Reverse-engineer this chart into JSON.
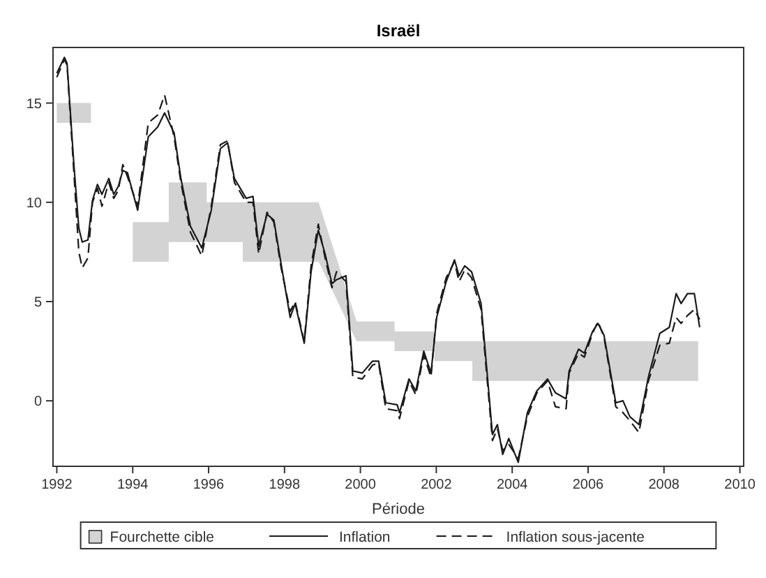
{
  "chart_data": {
    "type": "line",
    "title": "Israël",
    "xlabel": "Période",
    "xlim": [
      1991.9,
      2010.1
    ],
    "ylim": [
      -3.3,
      17.8
    ],
    "xticks": [
      1992,
      1994,
      1996,
      1998,
      2000,
      2002,
      2004,
      2006,
      2008,
      2010
    ],
    "yticks": [
      0,
      5,
      10,
      15
    ],
    "grid": false,
    "legend": "bottom",
    "series": [
      {
        "name": "Fourchette cible",
        "color": "#d3d3d3",
        "x": [
          1992,
          1992.9,
          1993.5,
          1994,
          1994.95,
          1994.95,
          1995.95,
          1995.95,
          1996.9,
          1996.9,
          1998.9,
          1999.9,
          2000.9,
          2000.9,
          2001.95,
          2001.95,
          2002.95,
          2002.95,
          2008.9
        ],
        "values": [
          null,
          null,
          null,
          null,
          null,
          null,
          null,
          null,
          null,
          null,
          null,
          null,
          null,
          null,
          null,
          null,
          null,
          null,
          null
        ],
        "upper": [
          15,
          15,
          null,
          9,
          9,
          11,
          11,
          10,
          10,
          10,
          10,
          4,
          4,
          3.5,
          3.5,
          3,
          3,
          3,
          3
        ],
        "lower": [
          14,
          14,
          null,
          7,
          7,
          8,
          8,
          8,
          8,
          7,
          7,
          3,
          3,
          2.5,
          2.5,
          2,
          2,
          1,
          1
        ]
      },
      {
        "name": "Inflation",
        "color": "#1a1a1a",
        "line_style": "solid",
        "x": [
          1992,
          1992.2,
          1992.27,
          1992.45,
          1992.58,
          1992.67,
          1992.82,
          1992.94,
          1993.07,
          1993.19,
          1993.37,
          1993.5,
          1993.62,
          1993.74,
          1993.86,
          1994.13,
          1994.41,
          1994.66,
          1994.84,
          1995.09,
          1995.27,
          1995.52,
          1995.82,
          1996.07,
          1996.31,
          1996.5,
          1996.68,
          1996.99,
          1997.17,
          1997.32,
          1997.54,
          1997.72,
          1997.91,
          1998.15,
          1998.28,
          1998.52,
          1998.7,
          1998.89,
          1999.07,
          1999.25,
          1999.37,
          1999.62,
          1999.8,
          2000.05,
          2000.32,
          2000.48,
          2000.67,
          2000.97,
          2001.03,
          2001.28,
          2001.46,
          2001.67,
          2001.86,
          2002.01,
          2002.26,
          2002.48,
          2002.6,
          2002.75,
          2002.93,
          2003.18,
          2003.48,
          2003.61,
          2003.75,
          2003.91,
          2004.16,
          2004.4,
          2004.65,
          2004.93,
          2005.14,
          2005.42,
          2005.5,
          2005.75,
          2005.9,
          2006.12,
          2006.26,
          2006.42,
          2006.73,
          2006.92,
          2007.1,
          2007.34,
          2007.59,
          2007.89,
          2008.14,
          2008.32,
          2008.45,
          2008.62,
          2008.8,
          2008.94
        ],
        "values": [
          16.5,
          17.3,
          17,
          11.9,
          8.7,
          8,
          8.1,
          10.1,
          10.9,
          10.4,
          11.2,
          10.4,
          10.8,
          11.6,
          11.5,
          9.6,
          13.3,
          13.8,
          14.5,
          13.5,
          11.2,
          8.8,
          7.7,
          9.6,
          12.7,
          13,
          11.2,
          10.2,
          10.3,
          7.8,
          9.4,
          9.1,
          6.9,
          4.2,
          4.9,
          2.9,
          6.5,
          8.6,
          7.4,
          5.9,
          6.1,
          6.3,
          1.5,
          1.4,
          2,
          2,
          -0.1,
          -0.2,
          -0.6,
          1.1,
          0.5,
          2.5,
          1.4,
          4.2,
          6,
          7.1,
          6.3,
          6.8,
          6.5,
          4.9,
          -1.7,
          -1.2,
          -2.7,
          -1.9,
          -3.1,
          -0.6,
          0.5,
          1.1,
          0.4,
          0.1,
          1.5,
          2.6,
          2.4,
          3.5,
          3.9,
          3.3,
          -0.1,
          0,
          -0.8,
          -1.2,
          1.2,
          3.4,
          3.7,
          5.4,
          4.9,
          5.4,
          5.4,
          3.7
        ]
      },
      {
        "name": "Inflation sous-jacente",
        "color": "#1a1a1a",
        "line_style": "dashed",
        "x": [
          1992,
          1992.2,
          1992.27,
          1992.45,
          1992.58,
          1992.67,
          1992.82,
          1992.94,
          1993.07,
          1993.19,
          1993.37,
          1993.5,
          1993.62,
          1993.74,
          1993.86,
          1994.13,
          1994.41,
          1994.66,
          1994.84,
          1995.09,
          1995.27,
          1995.52,
          1995.82,
          1996.07,
          1996.31,
          1996.5,
          1996.68,
          1996.99,
          1997.17,
          1997.32,
          1997.54,
          1997.72,
          1997.91,
          1998.15,
          1998.28,
          1998.52,
          1998.7,
          1998.89,
          1999.07,
          1999.25,
          1999.37,
          1999.62,
          1999.8,
          2000.05,
          2000.32,
          2000.48,
          2000.67,
          2000.97,
          2001.03,
          2001.28,
          2001.46,
          2001.67,
          2001.86,
          2002.01,
          2002.26,
          2002.48,
          2002.6,
          2002.75,
          2002.93,
          2003.18,
          2003.48,
          2003.61,
          2003.75,
          2003.91,
          2004.16,
          2004.4,
          2004.65,
          2004.93,
          2005.14,
          2005.42,
          2005.5,
          2005.75,
          2005.9,
          2006.12,
          2006.26,
          2006.42,
          2006.73,
          2006.92,
          2007.1,
          2007.34,
          2007.59,
          2007.89,
          2008.14,
          2008.32,
          2008.45,
          2008.62,
          2008.8,
          2008.94
        ],
        "values": [
          16.3,
          17.2,
          16.9,
          11.5,
          7.5,
          6.7,
          7.2,
          10,
          10.7,
          9.8,
          11,
          10.2,
          10.6,
          11.9,
          11.3,
          9.8,
          14,
          14.4,
          15.4,
          13.3,
          11,
          8.5,
          7.3,
          9.8,
          12.9,
          13.1,
          11,
          10,
          10,
          7.4,
          9.5,
          9,
          6.7,
          4.5,
          5,
          3,
          6.8,
          8.9,
          7.2,
          5.7,
          6.5,
          6,
          1.2,
          1.1,
          1.8,
          1.9,
          -0.4,
          -0.5,
          -0.9,
          1,
          0.3,
          2.3,
          1.2,
          4.4,
          6.2,
          7,
          6,
          6.6,
          6.2,
          4.6,
          -2,
          -1.4,
          -2.5,
          -2.2,
          -2.9,
          -0.8,
          0.4,
          1,
          -0.3,
          -0.4,
          1.4,
          2.4,
          2.2,
          3.4,
          4,
          3.2,
          -0.3,
          -0.6,
          -1,
          -1.6,
          1,
          2.8,
          2.9,
          4.2,
          3.9,
          4.3,
          4.6,
          4.1
        ]
      }
    ]
  }
}
